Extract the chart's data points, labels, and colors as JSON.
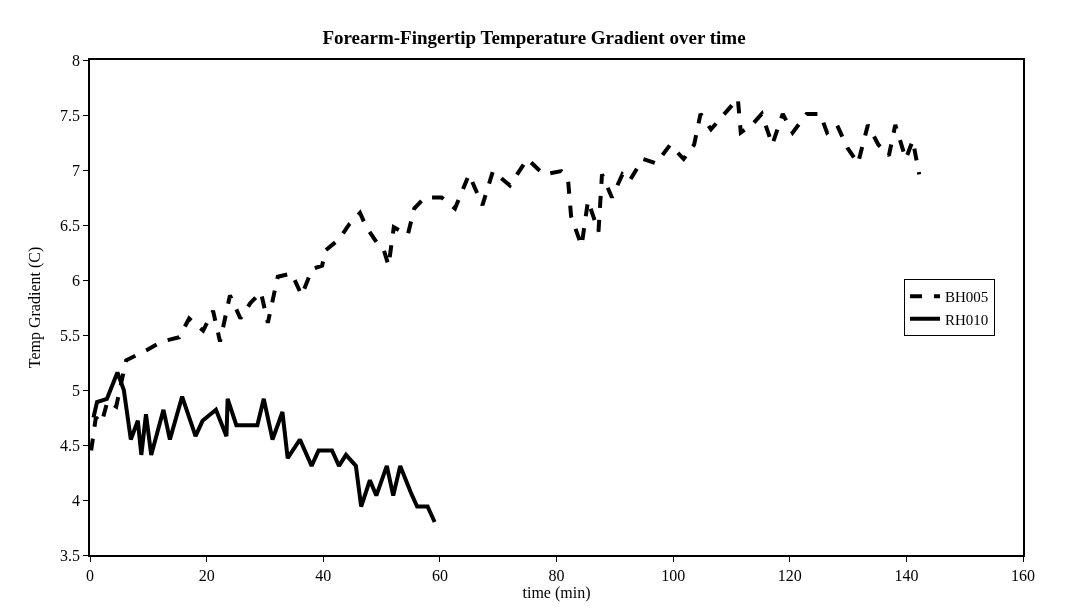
{
  "chart_data": {
    "type": "line",
    "title": "Forearm-Fingertip Temperature Gradient over time",
    "xlabel": "time (min)",
    "ylabel": "Temp Gradient (C)",
    "xlim": [
      0,
      160
    ],
    "xticks": [
      0,
      20,
      40,
      60,
      80,
      100,
      120,
      140,
      160
    ],
    "ylim": [
      3.5,
      8
    ],
    "yticks": [
      3.5,
      4,
      4.5,
      5,
      5.5,
      6,
      6.5,
      7,
      7.5,
      8
    ],
    "legend": "right",
    "marker": "none",
    "series": [
      {
        "name": "BH005",
        "color": "#000000",
        "line_style": "dashed",
        "x": [
          0.2,
          1,
          2,
          3,
          4.5,
          5.5,
          6.2,
          10,
          12.3,
          15.3,
          17,
          19.4,
          21.1,
          22.3,
          24,
          25.8,
          27.5,
          29.3,
          30.5,
          32.2,
          34.6,
          36.3,
          38.1,
          39.8,
          40.4,
          42.7,
          44.5,
          46.3,
          47.4,
          49.2,
          50.4,
          51.2,
          52.1,
          54.5,
          55.6,
          57.4,
          60.3,
          62.6,
          65,
          67.3,
          69.1,
          72,
          75,
          77.8,
          80.8,
          82,
          82.5,
          84.3,
          85.4,
          87.2,
          87.8,
          89.5,
          91.3,
          92.5,
          94.8,
          97.1,
          99.5,
          101.8,
          103.6,
          104.7,
          106.5,
          108.8,
          111.1,
          111.6,
          113.5,
          115.2,
          117,
          118.8,
          120.5,
          122.9,
          125.2,
          126.4,
          128.1,
          129.9,
          131.7,
          133.4,
          135.2,
          137,
          138.1,
          139.9,
          141.1,
          142.2
        ],
        "values": [
          4.45,
          4.75,
          4.7,
          4.9,
          4.85,
          5.1,
          5.27,
          5.37,
          5.44,
          5.48,
          5.65,
          5.54,
          5.72,
          5.44,
          5.86,
          5.65,
          5.79,
          5.89,
          5.61,
          6.03,
          6.06,
          5.86,
          6.1,
          6.13,
          6.27,
          6.37,
          6.51,
          6.61,
          6.48,
          6.34,
          6.27,
          6.13,
          6.48,
          6.41,
          6.65,
          6.75,
          6.75,
          6.65,
          6.96,
          6.68,
          6.99,
          6.86,
          7.1,
          6.96,
          6.99,
          6.9,
          6.58,
          6.31,
          6.72,
          6.44,
          6.96,
          6.75,
          6.96,
          6.9,
          7.1,
          7.06,
          7.23,
          7.1,
          7.23,
          7.51,
          7.37,
          7.51,
          7.65,
          7.34,
          7.41,
          7.51,
          7.23,
          7.51,
          7.34,
          7.51,
          7.51,
          7.34,
          7.41,
          7.2,
          7.06,
          7.41,
          7.23,
          7.13,
          7.41,
          7.1,
          7.27,
          6.96
        ]
      },
      {
        "name": "RH010",
        "color": "#000000",
        "line_style": "solid",
        "x": [
          0.6,
          1.2,
          2.9,
          4.7,
          5.8,
          7,
          8.2,
          8.8,
          9.6,
          10.5,
          12.6,
          13.7,
          15.8,
          18.1,
          19.3,
          21.6,
          23.4,
          23.6,
          25.1,
          28.7,
          29.8,
          31.3,
          33,
          33.9,
          36,
          38,
          39.2,
          41.5,
          42.7,
          43.9,
          45.6,
          46.5,
          48,
          49.1,
          50.9,
          52,
          53.2,
          55,
          56.1,
          57.9,
          59.1
        ],
        "values": [
          4.75,
          4.89,
          4.92,
          5.16,
          5.0,
          4.55,
          4.72,
          4.41,
          4.78,
          4.41,
          4.82,
          4.55,
          4.94,
          4.58,
          4.72,
          4.82,
          4.58,
          4.92,
          4.68,
          4.68,
          4.92,
          4.55,
          4.8,
          4.38,
          4.55,
          4.31,
          4.45,
          4.45,
          4.31,
          4.41,
          4.31,
          3.94,
          4.18,
          4.04,
          4.31,
          4.04,
          4.31,
          4.07,
          3.94,
          3.94,
          3.8
        ]
      }
    ]
  }
}
